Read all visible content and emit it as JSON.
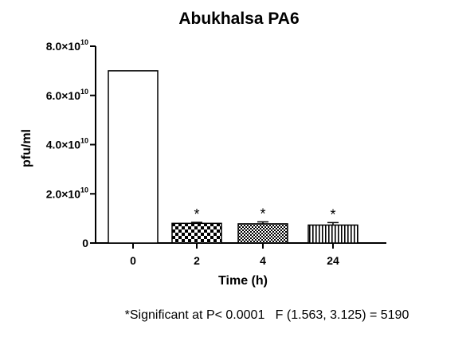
{
  "chart_data": {
    "type": "bar",
    "title": "Abukhalsa PA6",
    "xlabel": "Time (h)",
    "ylabel": "pfu/ml",
    "categories": [
      "0",
      "2",
      "4",
      "24"
    ],
    "values": [
      70000000000.0,
      8000000000.0,
      7800000000.0,
      7300000000.0
    ],
    "errors": [
      0,
      400000000.0,
      800000000.0,
      1000000000.0
    ],
    "patterns": [
      "none",
      "checker",
      "dots",
      "vertical-stripes"
    ],
    "significance": [
      "",
      "*",
      "*",
      "*"
    ],
    "ylim": [
      0,
      80000000000.0
    ],
    "yticks": [
      {
        "value": 0,
        "mantissa": "0",
        "exponent": ""
      },
      {
        "value": 20000000000.0,
        "mantissa": "2.0×10",
        "exponent": "10"
      },
      {
        "value": 40000000000.0,
        "mantissa": "4.0×10",
        "exponent": "10"
      },
      {
        "value": 60000000000.0,
        "mantissa": "6.0×10",
        "exponent": "10"
      },
      {
        "value": 80000000000.0,
        "mantissa": "8.0×10",
        "exponent": "10"
      }
    ],
    "footnote": "*Significant at P< 0.0001   F (1.563, 3.125) = 5190",
    "grid": false,
    "legend": "none"
  }
}
